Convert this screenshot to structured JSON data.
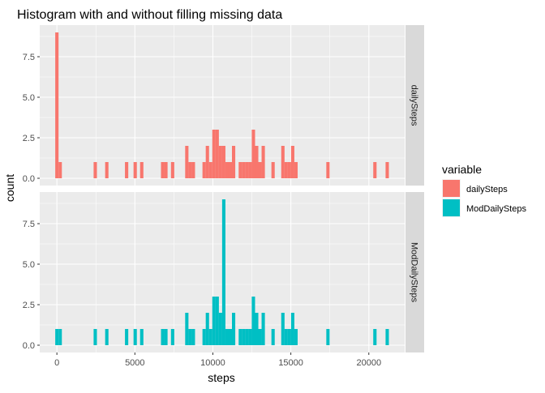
{
  "chart_data": {
    "type": "bar",
    "title": "Histogram with and without filling missing data",
    "xlabel": "steps",
    "ylabel": "count",
    "xlim": [
      -1100,
      22300
    ],
    "ylim": [
      -0.45,
      9.45
    ],
    "x_ticks": [
      0,
      5000,
      10000,
      15000,
      20000
    ],
    "x_tick_labels": [
      "0",
      "5000",
      "10000",
      "15000",
      "20000"
    ],
    "y_ticks": [
      0,
      2.5,
      5,
      7.5
    ],
    "y_tick_labels": [
      "0.0",
      "2.5",
      "5.0",
      "7.5"
    ],
    "bin_width": 212,
    "grid": true,
    "legend": {
      "title": "variable",
      "position": "right",
      "entries": [
        {
          "label": "dailySteps",
          "color": "#F8766D"
        },
        {
          "label": "ModDailySteps",
          "color": "#00BFC4"
        }
      ]
    },
    "facets": [
      {
        "strip_label": "dailySteps",
        "color": "#F8766D",
        "bins": [
          {
            "x": 0,
            "count": 9
          },
          {
            "x": 212,
            "count": 1
          },
          {
            "x": 2460,
            "count": 1
          },
          {
            "x": 3200,
            "count": 1
          },
          {
            "x": 4470,
            "count": 1
          },
          {
            "x": 5020,
            "count": 1
          },
          {
            "x": 5440,
            "count": 1
          },
          {
            "x": 6780,
            "count": 1
          },
          {
            "x": 6990,
            "count": 1
          },
          {
            "x": 7420,
            "count": 1
          },
          {
            "x": 8330,
            "count": 2
          },
          {
            "x": 8540,
            "count": 1
          },
          {
            "x": 8750,
            "count": 1
          },
          {
            "x": 9440,
            "count": 1
          },
          {
            "x": 9650,
            "count": 2
          },
          {
            "x": 9860,
            "count": 1
          },
          {
            "x": 10070,
            "count": 3
          },
          {
            "x": 10280,
            "count": 3
          },
          {
            "x": 10490,
            "count": 2
          },
          {
            "x": 10700,
            "count": 2
          },
          {
            "x": 10910,
            "count": 1
          },
          {
            "x": 11120,
            "count": 1
          },
          {
            "x": 11330,
            "count": 2
          },
          {
            "x": 11760,
            "count": 1
          },
          {
            "x": 11970,
            "count": 1
          },
          {
            "x": 12180,
            "count": 1
          },
          {
            "x": 12390,
            "count": 1
          },
          {
            "x": 12600,
            "count": 3
          },
          {
            "x": 12810,
            "count": 2
          },
          {
            "x": 13020,
            "count": 1
          },
          {
            "x": 13230,
            "count": 2
          },
          {
            "x": 13860,
            "count": 1
          },
          {
            "x": 14490,
            "count": 2
          },
          {
            "x": 14700,
            "count": 1
          },
          {
            "x": 14910,
            "count": 1
          },
          {
            "x": 15120,
            "count": 2
          },
          {
            "x": 15330,
            "count": 1
          },
          {
            "x": 17380,
            "count": 1
          },
          {
            "x": 20390,
            "count": 1
          },
          {
            "x": 21180,
            "count": 1
          }
        ]
      },
      {
        "strip_label": "ModDailySteps",
        "color": "#00BFC4",
        "bins": [
          {
            "x": 0,
            "count": 1
          },
          {
            "x": 212,
            "count": 1
          },
          {
            "x": 2460,
            "count": 1
          },
          {
            "x": 3200,
            "count": 1
          },
          {
            "x": 4470,
            "count": 1
          },
          {
            "x": 5020,
            "count": 1
          },
          {
            "x": 5440,
            "count": 1
          },
          {
            "x": 6780,
            "count": 1
          },
          {
            "x": 6990,
            "count": 1
          },
          {
            "x": 7420,
            "count": 1
          },
          {
            "x": 8330,
            "count": 2
          },
          {
            "x": 8540,
            "count": 1
          },
          {
            "x": 8750,
            "count": 1
          },
          {
            "x": 9440,
            "count": 1
          },
          {
            "x": 9650,
            "count": 2
          },
          {
            "x": 9860,
            "count": 1
          },
          {
            "x": 10070,
            "count": 3
          },
          {
            "x": 10280,
            "count": 3
          },
          {
            "x": 10490,
            "count": 2
          },
          {
            "x": 10700,
            "count": 9
          },
          {
            "x": 10910,
            "count": 1
          },
          {
            "x": 11120,
            "count": 1
          },
          {
            "x": 11330,
            "count": 2
          },
          {
            "x": 11760,
            "count": 1
          },
          {
            "x": 11970,
            "count": 1
          },
          {
            "x": 12180,
            "count": 1
          },
          {
            "x": 12390,
            "count": 1
          },
          {
            "x": 12600,
            "count": 3
          },
          {
            "x": 12810,
            "count": 2
          },
          {
            "x": 13020,
            "count": 1
          },
          {
            "x": 13230,
            "count": 2
          },
          {
            "x": 13860,
            "count": 1
          },
          {
            "x": 14490,
            "count": 2
          },
          {
            "x": 14700,
            "count": 1
          },
          {
            "x": 14910,
            "count": 1
          },
          {
            "x": 15120,
            "count": 2
          },
          {
            "x": 15330,
            "count": 1
          },
          {
            "x": 17380,
            "count": 1
          },
          {
            "x": 20390,
            "count": 1
          },
          {
            "x": 21180,
            "count": 1
          }
        ]
      }
    ]
  }
}
